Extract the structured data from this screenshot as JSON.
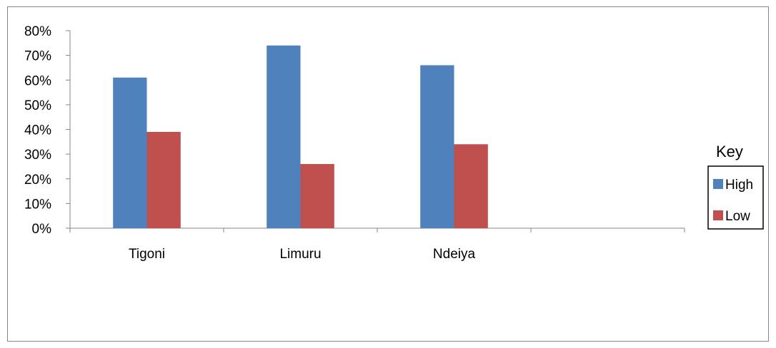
{
  "chart_data": {
    "type": "bar",
    "categories": [
      "Tigoni",
      "Limuru",
      "Ndeiya",
      ""
    ],
    "series": [
      {
        "name": "High",
        "values": [
          61,
          74,
          66,
          null
        ],
        "color": "#4F81BD"
      },
      {
        "name": "Low",
        "values": [
          39,
          26,
          34,
          null
        ],
        "color": "#C0504D"
      }
    ],
    "y_tick_labels": [
      "0%",
      "10%",
      "20%",
      "30%",
      "40%",
      "50%",
      "60%",
      "70%",
      "80%"
    ],
    "ylim": [
      0,
      80
    ],
    "y_unit": "%",
    "grid": false,
    "legend": {
      "title": "Key",
      "placement": "right"
    },
    "title": "",
    "xlabel": "",
    "ylabel": ""
  }
}
